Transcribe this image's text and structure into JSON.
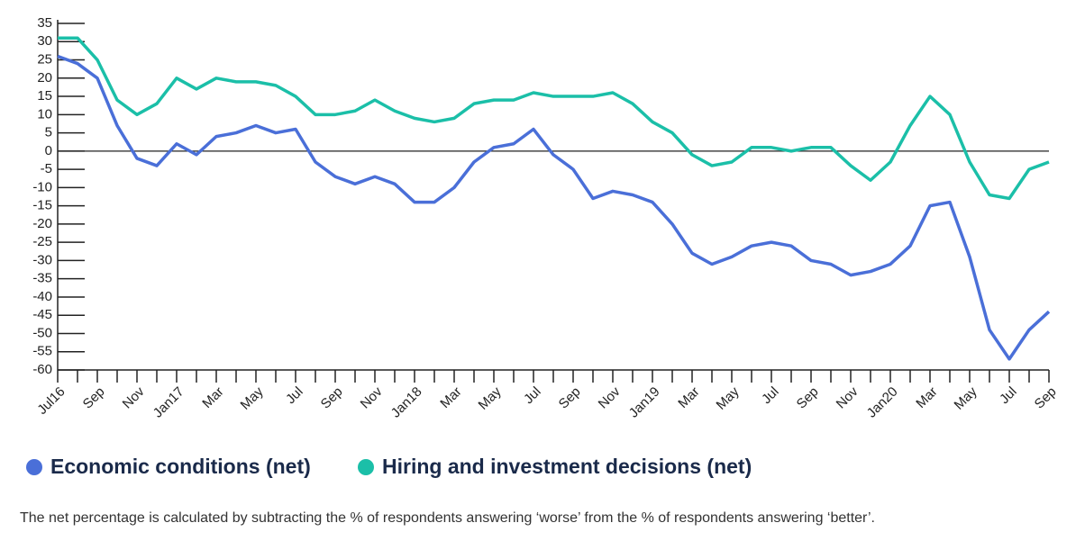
{
  "chart_data": {
    "type": "line",
    "categories": [
      "Jul16",
      null,
      "Sep",
      null,
      "Nov",
      null,
      "Jan17",
      null,
      "Mar",
      null,
      "May",
      null,
      "Jul",
      null,
      "Sep",
      null,
      "Nov",
      null,
      "Jan18",
      null,
      "Mar",
      null,
      "May",
      null,
      "Jul",
      null,
      "Sep",
      null,
      "Nov",
      null,
      "Jan19",
      null,
      "Mar",
      null,
      "May",
      null,
      "Jul",
      null,
      "Sep",
      null,
      "Nov",
      null,
      "Jan20",
      null,
      "Mar",
      null,
      "May",
      null,
      "Jul",
      null,
      "Sep"
    ],
    "series": [
      {
        "name": "Economic conditions (net)",
        "color": "#4a6fd8",
        "values": [
          26,
          24,
          20,
          7,
          -2,
          -4,
          2,
          -1,
          4,
          5,
          7,
          5,
          6,
          -3,
          -7,
          -9,
          -7,
          -9,
          -14,
          -14,
          -10,
          -3,
          1,
          2,
          6,
          -1,
          -5,
          -13,
          -11,
          -12,
          -14,
          -20,
          -28,
          -31,
          -29,
          -26,
          -25,
          -26,
          -30,
          -31,
          -34,
          -33,
          -31,
          -26,
          -15,
          -14,
          -29,
          -49,
          -57,
          -49,
          -44
        ]
      },
      {
        "name": "Hiring and investment decisions (net)",
        "color": "#1bbfa8",
        "values": [
          31,
          31,
          25,
          14,
          10,
          13,
          20,
          17,
          20,
          19,
          19,
          18,
          15,
          10,
          10,
          11,
          14,
          11,
          9,
          8,
          9,
          13,
          14,
          14,
          16,
          15,
          15,
          15,
          16,
          13,
          8,
          5,
          -1,
          -4,
          -3,
          1,
          1,
          0,
          1,
          1,
          -4,
          -8,
          -3,
          7,
          15,
          10,
          -3,
          -12,
          -13,
          -5,
          -3
        ]
      }
    ],
    "ylim": [
      -60,
      35
    ],
    "yticks": [
      -60,
      -55,
      -50,
      -45,
      -40,
      -35,
      -30,
      -25,
      -20,
      -15,
      -10,
      -5,
      0,
      5,
      10,
      15,
      20,
      25,
      30,
      35
    ],
    "note": "The net percentage is calculated by subtracting the % of respondents answering ‘worse’ from the % of respondents answering ‘better’."
  }
}
